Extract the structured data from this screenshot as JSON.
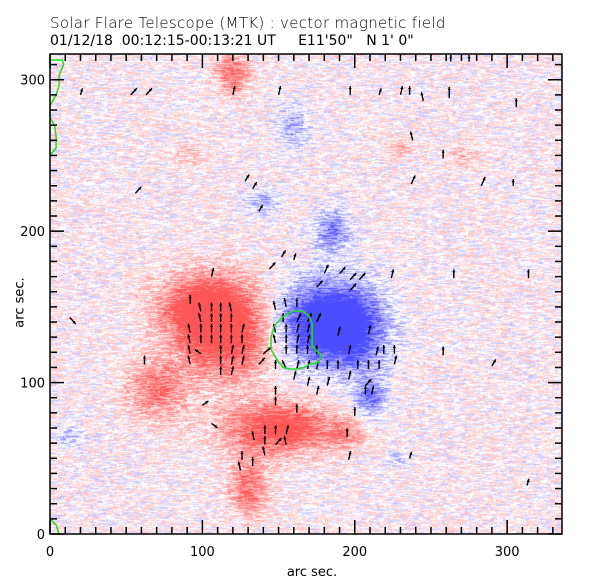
{
  "header": {
    "title": "Solar Flare Telescope (MTK) : vector magnetic field",
    "subtitle": "01/12/18  00:12:15-00:13:21 UT     E11'50\"   N 1' 0\""
  },
  "colors": {
    "positive_polarity": "#ff5a5a",
    "negative_polarity": "#4a4aff",
    "noise_red": "#f2a0a0",
    "noise_blue": "#a8a8ee",
    "arrow": "#000000",
    "contour": "#22dd22",
    "frame": "#000000"
  },
  "chart_data": {
    "type": "heatmap",
    "title": "Solar Flare Telescope (MTK) : vector magnetic field",
    "subtitle": "01/12/18  00:12:15-00:13:21 UT     E11'50\"   N 1' 0\"",
    "xlabel": "arc sec.",
    "ylabel": "arc sec.",
    "xlim": [
      0,
      336
    ],
    "ylim": [
      0,
      317
    ],
    "x_major_ticks": [
      0,
      100,
      200,
      300
    ],
    "y_major_ticks": [
      0,
      100,
      200,
      300
    ],
    "minor_tick_step": 10,
    "x_tick_labels": [
      "0",
      "100",
      "200",
      "300"
    ],
    "y_tick_labels": [
      "0",
      "100",
      "200",
      "300"
    ],
    "grid": false,
    "legend": "none",
    "colormap": "red = positive longitudinal field, blue = negative longitudinal field",
    "patches": [
      {
        "polarity": "positive",
        "x": 115,
        "y": 135,
        "sx": 22,
        "sy": 22,
        "strength": 1.0
      },
      {
        "polarity": "positive",
        "x": 95,
        "y": 150,
        "sx": 18,
        "sy": 14,
        "strength": 0.6
      },
      {
        "polarity": "positive",
        "x": 70,
        "y": 95,
        "sx": 14,
        "sy": 14,
        "strength": 0.55
      },
      {
        "polarity": "positive",
        "x": 150,
        "y": 70,
        "sx": 25,
        "sy": 12,
        "strength": 0.9
      },
      {
        "polarity": "positive",
        "x": 130,
        "y": 30,
        "sx": 9,
        "sy": 13,
        "strength": 0.6
      },
      {
        "polarity": "positive",
        "x": 120,
        "y": 305,
        "sx": 8,
        "sy": 10,
        "strength": 0.6
      },
      {
        "polarity": "positive",
        "x": 195,
        "y": 67,
        "sx": 8,
        "sy": 6,
        "strength": 0.4
      },
      {
        "polarity": "positive",
        "x": 90,
        "y": 250,
        "sx": 7,
        "sy": 5,
        "strength": 0.25
      },
      {
        "polarity": "positive",
        "x": 230,
        "y": 255,
        "sx": 8,
        "sy": 5,
        "strength": 0.25
      },
      {
        "polarity": "positive",
        "x": 270,
        "y": 250,
        "sx": 8,
        "sy": 5,
        "strength": 0.25
      },
      {
        "polarity": "negative",
        "x": 175,
        "y": 140,
        "sx": 20,
        "sy": 18,
        "strength": 1.0
      },
      {
        "polarity": "negative",
        "x": 200,
        "y": 135,
        "sx": 16,
        "sy": 20,
        "strength": 0.7
      },
      {
        "polarity": "negative",
        "x": 210,
        "y": 90,
        "sx": 7,
        "sy": 9,
        "strength": 0.55
      },
      {
        "polarity": "negative",
        "x": 185,
        "y": 200,
        "sx": 8,
        "sy": 10,
        "strength": 0.55
      },
      {
        "polarity": "negative",
        "x": 160,
        "y": 270,
        "sx": 7,
        "sy": 10,
        "strength": 0.4
      },
      {
        "polarity": "negative",
        "x": 140,
        "y": 220,
        "sx": 8,
        "sy": 6,
        "strength": 0.35
      },
      {
        "polarity": "negative",
        "x": 12,
        "y": 65,
        "sx": 6,
        "sy": 5,
        "strength": 0.3
      },
      {
        "polarity": "negative",
        "x": 228,
        "y": 50,
        "sx": 5,
        "sy": 4,
        "strength": 0.3
      }
    ],
    "vectors": [
      {
        "x": 20,
        "y": 290,
        "dx": 1,
        "dy": 3
      },
      {
        "x": 53,
        "y": 290,
        "dx": 3,
        "dy": 3
      },
      {
        "x": 63,
        "y": 290,
        "dx": 3,
        "dy": 3
      },
      {
        "x": 120,
        "y": 290,
        "dx": 1,
        "dy": 4
      },
      {
        "x": 150,
        "y": 290,
        "dx": 1,
        "dy": 4
      },
      {
        "x": 197,
        "y": 290,
        "dx": 0,
        "dy": 4
      },
      {
        "x": 216,
        "y": 290,
        "dx": 1,
        "dy": 3
      },
      {
        "x": 230,
        "y": 290,
        "dx": 1,
        "dy": 4
      },
      {
        "x": 236,
        "y": 290,
        "dx": 0,
        "dy": 4
      },
      {
        "x": 245,
        "y": 286,
        "dx": -1,
        "dy": 4
      },
      {
        "x": 262,
        "y": 288,
        "dx": 0,
        "dy": 5
      },
      {
        "x": 306,
        "y": 282,
        "dx": 0,
        "dy": 4
      },
      {
        "x": 263,
        "y": 312,
        "dx": 0,
        "dy": 3
      },
      {
        "x": 275,
        "y": 312,
        "dx": 0,
        "dy": 3
      },
      {
        "x": 238,
        "y": 260,
        "dx": -1,
        "dy": 4
      },
      {
        "x": 258,
        "y": 248,
        "dx": 0,
        "dy": 4
      },
      {
        "x": 304,
        "y": 230,
        "dx": 0,
        "dy": 3
      },
      {
        "x": 56,
        "y": 225,
        "dx": 3,
        "dy": 3
      },
      {
        "x": 128,
        "y": 233,
        "dx": 2,
        "dy": 3
      },
      {
        "x": 133,
        "y": 228,
        "dx": 2,
        "dy": 3
      },
      {
        "x": 137,
        "y": 213,
        "dx": 2,
        "dy": 3
      },
      {
        "x": 152,
        "y": 183,
        "dx": 2,
        "dy": 3
      },
      {
        "x": 144,
        "y": 175,
        "dx": 3,
        "dy": 3
      },
      {
        "x": 237,
        "y": 231,
        "dx": 2,
        "dy": 4
      },
      {
        "x": 283,
        "y": 230,
        "dx": 2,
        "dy": 4
      },
      {
        "x": 13,
        "y": 143,
        "dx": 3,
        "dy": -3
      },
      {
        "x": 106,
        "y": 170,
        "dx": 1,
        "dy": 4
      },
      {
        "x": 92,
        "y": 152,
        "dx": 0,
        "dy": 4
      },
      {
        "x": 99,
        "y": 147,
        "dx": -1,
        "dy": 4
      },
      {
        "x": 106,
        "y": 147,
        "dx": 0,
        "dy": 4
      },
      {
        "x": 112,
        "y": 147,
        "dx": 0,
        "dy": 4
      },
      {
        "x": 119,
        "y": 147,
        "dx": -1,
        "dy": 4
      },
      {
        "x": 99,
        "y": 140,
        "dx": -1,
        "dy": 4
      },
      {
        "x": 106,
        "y": 140,
        "dx": 0,
        "dy": 4
      },
      {
        "x": 112,
        "y": 140,
        "dx": 0,
        "dy": 4
      },
      {
        "x": 119,
        "y": 140,
        "dx": 0,
        "dy": 4
      },
      {
        "x": 92,
        "y": 133,
        "dx": -1,
        "dy": 4
      },
      {
        "x": 99,
        "y": 133,
        "dx": 0,
        "dy": 4
      },
      {
        "x": 106,
        "y": 133,
        "dx": 0,
        "dy": 4
      },
      {
        "x": 112,
        "y": 133,
        "dx": 0,
        "dy": 4
      },
      {
        "x": 119,
        "y": 133,
        "dx": 0,
        "dy": 4
      },
      {
        "x": 126,
        "y": 133,
        "dx": 1,
        "dy": 4
      },
      {
        "x": 92,
        "y": 126,
        "dx": -1,
        "dy": 4
      },
      {
        "x": 99,
        "y": 126,
        "dx": 0,
        "dy": 4
      },
      {
        "x": 106,
        "y": 126,
        "dx": 0,
        "dy": 4
      },
      {
        "x": 112,
        "y": 126,
        "dx": 0,
        "dy": 4
      },
      {
        "x": 119,
        "y": 126,
        "dx": 0,
        "dy": 4
      },
      {
        "x": 126,
        "y": 126,
        "dx": 0,
        "dy": 4
      },
      {
        "x": 99,
        "y": 119,
        "dx": -3,
        "dy": 2
      },
      {
        "x": 112,
        "y": 119,
        "dx": 0,
        "dy": 4
      },
      {
        "x": 119,
        "y": 119,
        "dx": 1,
        "dy": 4
      },
      {
        "x": 126,
        "y": 119,
        "dx": 1,
        "dy": 4
      },
      {
        "x": 92,
        "y": 119,
        "dx": -1,
        "dy": 4
      },
      {
        "x": 92,
        "y": 112,
        "dx": -1,
        "dy": 4
      },
      {
        "x": 112,
        "y": 112,
        "dx": 0,
        "dy": 4
      },
      {
        "x": 119,
        "y": 112,
        "dx": 1,
        "dy": 4
      },
      {
        "x": 126,
        "y": 112,
        "dx": 1,
        "dy": 4
      },
      {
        "x": 62,
        "y": 112,
        "dx": 0,
        "dy": 4
      },
      {
        "x": 112,
        "y": 105,
        "dx": 0,
        "dy": 4
      },
      {
        "x": 119,
        "y": 105,
        "dx": 1,
        "dy": 4
      },
      {
        "x": 140,
        "y": 119,
        "dx": 4,
        "dy": 3
      },
      {
        "x": 100,
        "y": 85,
        "dx": 3,
        "dy": 2
      },
      {
        "x": 106,
        "y": 73,
        "dx": 3,
        "dy": -2
      },
      {
        "x": 141,
        "y": 66,
        "dx": 0,
        "dy": 4
      },
      {
        "x": 148,
        "y": 66,
        "dx": 0,
        "dy": 4
      },
      {
        "x": 155,
        "y": 66,
        "dx": 1,
        "dy": 4
      },
      {
        "x": 134,
        "y": 62,
        "dx": -1,
        "dy": 4
      },
      {
        "x": 141,
        "y": 59,
        "dx": 0,
        "dy": 4
      },
      {
        "x": 148,
        "y": 59,
        "dx": 3,
        "dy": 3
      },
      {
        "x": 155,
        "y": 59,
        "dx": -1,
        "dy": 4
      },
      {
        "x": 141,
        "y": 52,
        "dx": -1,
        "dy": 4
      },
      {
        "x": 126,
        "y": 49,
        "dx": 0,
        "dy": 4
      },
      {
        "x": 133,
        "y": 45,
        "dx": 0,
        "dy": 4
      },
      {
        "x": 195,
        "y": 64,
        "dx": 0,
        "dy": 4
      },
      {
        "x": 196,
        "y": 49,
        "dx": 1,
        "dy": 4
      },
      {
        "x": 160,
        "y": 181,
        "dx": 1,
        "dy": 3
      },
      {
        "x": 180,
        "y": 172,
        "dx": 2,
        "dy": 4
      },
      {
        "x": 175,
        "y": 163,
        "dx": 3,
        "dy": 3
      },
      {
        "x": 190,
        "y": 172,
        "dx": 3,
        "dy": 3
      },
      {
        "x": 197,
        "y": 168,
        "dx": 3,
        "dy": 3
      },
      {
        "x": 203,
        "y": 168,
        "dx": 3,
        "dy": 3
      },
      {
        "x": 197,
        "y": 161,
        "dx": 3,
        "dy": 3
      },
      {
        "x": 148,
        "y": 148,
        "dx": -1,
        "dy": 4
      },
      {
        "x": 155,
        "y": 150,
        "dx": -1,
        "dy": 4
      },
      {
        "x": 162,
        "y": 150,
        "dx": 0,
        "dy": 4
      },
      {
        "x": 153,
        "y": 140,
        "dx": 0,
        "dy": 4
      },
      {
        "x": 162,
        "y": 140,
        "dx": 2,
        "dy": 4
      },
      {
        "x": 169,
        "y": 140,
        "dx": 2,
        "dy": 4
      },
      {
        "x": 175,
        "y": 140,
        "dx": 2,
        "dy": 4
      },
      {
        "x": 148,
        "y": 133,
        "dx": -1,
        "dy": 4
      },
      {
        "x": 155,
        "y": 133,
        "dx": 0,
        "dy": 4
      },
      {
        "x": 162,
        "y": 133,
        "dx": 1,
        "dy": 4
      },
      {
        "x": 169,
        "y": 133,
        "dx": 1,
        "dy": 4
      },
      {
        "x": 148,
        "y": 126,
        "dx": -1,
        "dy": 4
      },
      {
        "x": 155,
        "y": 126,
        "dx": 0,
        "dy": 4
      },
      {
        "x": 162,
        "y": 126,
        "dx": 1,
        "dy": 4
      },
      {
        "x": 169,
        "y": 126,
        "dx": 1,
        "dy": 4
      },
      {
        "x": 155,
        "y": 119,
        "dx": 0,
        "dy": 4
      },
      {
        "x": 162,
        "y": 119,
        "dx": 0,
        "dy": 4
      },
      {
        "x": 169,
        "y": 119,
        "dx": 0,
        "dy": 4
      },
      {
        "x": 175,
        "y": 119,
        "dx": 0,
        "dy": 4
      },
      {
        "x": 189,
        "y": 131,
        "dx": 1,
        "dy": 4
      },
      {
        "x": 196,
        "y": 119,
        "dx": 1,
        "dy": 4
      },
      {
        "x": 209,
        "y": 132,
        "dx": 1,
        "dy": 4
      },
      {
        "x": 214,
        "y": 118,
        "dx": 1,
        "dy": 4
      },
      {
        "x": 148,
        "y": 109,
        "dx": 0,
        "dy": 4
      },
      {
        "x": 155,
        "y": 109,
        "dx": -2,
        "dy": 4
      },
      {
        "x": 162,
        "y": 109,
        "dx": 1,
        "dy": 4
      },
      {
        "x": 169,
        "y": 109,
        "dx": 1,
        "dy": 4
      },
      {
        "x": 175,
        "y": 109,
        "dx": 1,
        "dy": 4
      },
      {
        "x": 182,
        "y": 109,
        "dx": 0,
        "dy": 4
      },
      {
        "x": 189,
        "y": 109,
        "dx": 0,
        "dy": 4
      },
      {
        "x": 202,
        "y": 109,
        "dx": 0,
        "dy": 4
      },
      {
        "x": 209,
        "y": 109,
        "dx": 0,
        "dy": 4
      },
      {
        "x": 216,
        "y": 109,
        "dx": 0,
        "dy": 4
      },
      {
        "x": 226,
        "y": 112,
        "dx": 1,
        "dy": 4
      },
      {
        "x": 137,
        "y": 112,
        "dx": 3,
        "dy": 3
      },
      {
        "x": 160,
        "y": 102,
        "dx": 1,
        "dy": 4
      },
      {
        "x": 169,
        "y": 98,
        "dx": 1,
        "dy": 4
      },
      {
        "x": 182,
        "y": 98,
        "dx": 1,
        "dy": 4
      },
      {
        "x": 196,
        "y": 102,
        "dx": 1,
        "dy": 4
      },
      {
        "x": 207,
        "y": 98,
        "dx": 3,
        "dy": 3
      },
      {
        "x": 207,
        "y": 92,
        "dx": 0,
        "dy": 4
      },
      {
        "x": 148,
        "y": 92,
        "dx": 0,
        "dy": 4
      },
      {
        "x": 175,
        "y": 92,
        "dx": 1,
        "dy": 4
      },
      {
        "x": 148,
        "y": 85,
        "dx": 0,
        "dy": 4
      },
      {
        "x": 211,
        "y": 92,
        "dx": 1,
        "dy": 4
      },
      {
        "x": 162,
        "y": 80,
        "dx": 0,
        "dy": 4
      },
      {
        "x": 200,
        "y": 78,
        "dx": 0,
        "dy": 4
      },
      {
        "x": 258,
        "y": 118,
        "dx": 0,
        "dy": 4
      },
      {
        "x": 290,
        "y": 111,
        "dx": 2,
        "dy": 3
      },
      {
        "x": 219,
        "y": 119,
        "dx": 0,
        "dy": 4
      },
      {
        "x": 226,
        "y": 119,
        "dx": 0,
        "dy": 4
      },
      {
        "x": 265,
        "y": 169,
        "dx": 0,
        "dy": 4
      },
      {
        "x": 314,
        "y": 169,
        "dx": 0,
        "dy": 4
      },
      {
        "x": 224,
        "y": 169,
        "dx": 1,
        "dy": 4
      },
      {
        "x": 313,
        "y": 32,
        "dx": 1,
        "dy": 3
      },
      {
        "x": 125,
        "y": 42,
        "dx": -1,
        "dy": 4
      },
      {
        "x": 236,
        "y": 50,
        "dx": 1,
        "dy": 3
      }
    ],
    "contours": [
      {
        "level": "neutral-line",
        "points": [
          [
            159,
            147
          ],
          [
            166,
            147
          ],
          [
            170,
            144
          ],
          [
            172,
            139
          ],
          [
            172,
            130
          ],
          [
            172,
            124
          ],
          [
            175,
            121
          ],
          [
            178,
            118
          ],
          [
            176,
            113
          ],
          [
            170,
            112
          ],
          [
            167,
            110
          ],
          [
            162,
            109
          ],
          [
            157,
            109
          ],
          [
            153,
            110
          ],
          [
            149,
            115
          ],
          [
            145,
            122
          ],
          [
            145,
            130
          ],
          [
            147,
            137
          ],
          [
            152,
            143
          ],
          [
            159,
            147
          ]
        ]
      },
      {
        "level": "edge",
        "points": [
          [
            0,
            313
          ],
          [
            8,
            313
          ],
          [
            9,
            310
          ],
          [
            6,
            303
          ],
          [
            6,
            296
          ],
          [
            4,
            290
          ],
          [
            0,
            283
          ],
          [
            0,
            275
          ],
          [
            3,
            270
          ],
          [
            4,
            262
          ],
          [
            4,
            255
          ],
          [
            0,
            250
          ]
        ]
      },
      {
        "level": "edge",
        "points": [
          [
            0,
            10
          ],
          [
            4,
            6
          ],
          [
            6,
            0
          ]
        ]
      }
    ]
  }
}
